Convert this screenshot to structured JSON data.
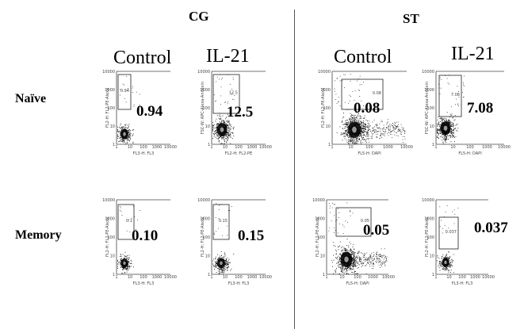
{
  "groups": {
    "cg": {
      "label": "CG"
    },
    "st": {
      "label": "ST"
    }
  },
  "columns": {
    "cg_control": "Control",
    "cg_il21": "IL-21",
    "st_control": "Control",
    "st_il21": "IL-21"
  },
  "rows": {
    "naive": "Naïve",
    "memory": "Memory"
  },
  "values": {
    "cg_naive_control": "0.94",
    "cg_naive_il21": "12.5",
    "st_naive_control": "0.08",
    "st_naive_il21": "7.08",
    "cg_memory_control": "0.10",
    "cg_memory_il21": "0.15",
    "st_memory_control": "0.05",
    "st_memory_il21": "0.037"
  },
  "gate_labels": {
    "cg_naive_control": "0.94",
    "cg_naive_il21": "12.5",
    "st_naive_control": "0.08",
    "st_naive_il21": "7.08",
    "cg_memory_control": "0.1",
    "cg_memory_il21": "0.15",
    "st_memory_control": "0.05",
    "st_memory_il21": "0.037"
  },
  "axis_labels": {
    "cg_naive_control": {
      "x": "FL3-H: FL3",
      "y": "FL2-H: FL2-PE-Alexa"
    },
    "cg_naive_il21": {
      "x": "FL2-H: FL2-PE",
      "y": "FSC-W: APC-Alexa-Annexin"
    },
    "st_naive_control": {
      "x": "FL5-H: DAPI",
      "y": "FL2-H: FL2-PE-Alexa"
    },
    "st_naive_il21": {
      "x": "FL5-H: DAPI",
      "y": "FSC-W: APC-Alexa-Annexin"
    },
    "cg_memory_control": {
      "x": "FL3-H: FL3",
      "y": "FL2-H: FL2-PE-Alexa"
    },
    "cg_memory_il21": {
      "x": "FL3-H: FL3",
      "y": "FL2-H: FL2-PE-Alexa"
    },
    "st_memory_control": {
      "x": "FL5-H: DAPI",
      "y": "FL2-H: FL2-PE-Alexa"
    },
    "st_memory_il21": {
      "x": "FL3-H: FL3",
      "y": "FL2-H: FL2-PE-Alexa"
    }
  },
  "tick_labels": {
    "x": [
      "1",
      "10",
      "100",
      "1000",
      "10000"
    ],
    "y": [
      "1",
      "10",
      "100",
      "1000",
      "10000"
    ]
  }
}
